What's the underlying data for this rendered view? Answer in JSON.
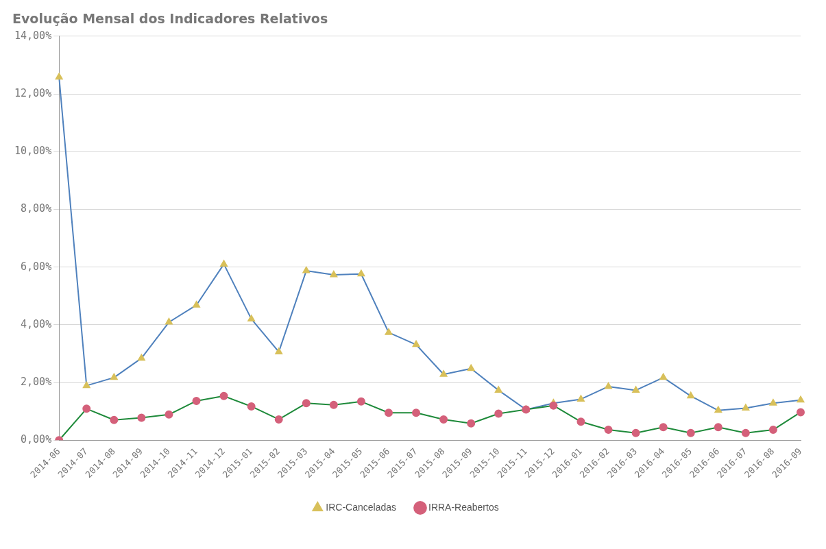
{
  "chart_data": {
    "type": "line",
    "title": "Evolução Mensal dos Indicadores Relativos",
    "categories": [
      "2014-06",
      "2014-07",
      "2014-08",
      "2014-09",
      "2014-10",
      "2014-11",
      "2014-12",
      "2015-01",
      "2015-02",
      "2015-03",
      "2015-04",
      "2015-05",
      "2015-06",
      "2015-07",
      "2015-08",
      "2015-09",
      "2015-10",
      "2015-11",
      "2015-12",
      "2016-01",
      "2016-02",
      "2016-03",
      "2016-04",
      "2016-05",
      "2016-06",
      "2016-07",
      "2016-08",
      "2016-09"
    ],
    "series": [
      {
        "name": "IRC-Canceladas",
        "color": "#4f81bd",
        "marker": "triangle",
        "colors": [
          "#d8c05a",
          "#d8c05a",
          "#d8c05a",
          "#d8c05a",
          "#d8c05a",
          "#d8c05a",
          "#d8c05a",
          "#d8c05a",
          "#d8c05a",
          "#d8c05a",
          "#d8c05a",
          "#d8c05a",
          "#d8c05a",
          "#d8c05a",
          "#d8c05a",
          "#d8c05a",
          "#d8c05a",
          "#d8c05a",
          "#d8c05a",
          "#d8c05a",
          "#d8c05a",
          "#d8c05a",
          "#d8c05a",
          "#d8c05a",
          "#d8c05a",
          "#d8c05a",
          "#d8c05a",
          "#d8c05a"
        ],
        "values": [
          12.58,
          1.89,
          2.17,
          2.84,
          4.09,
          4.68,
          6.1,
          4.2,
          3.06,
          5.87,
          5.73,
          5.76,
          3.73,
          3.31,
          2.28,
          2.48,
          1.73,
          1.06,
          1.28,
          1.42,
          1.86,
          1.73,
          2.17,
          1.53,
          1.03,
          1.11,
          1.28,
          1.39
        ]
      },
      {
        "name": "IRRA-Reabertos",
        "color": "#1e8a3a",
        "marker": "circle",
        "colors": [
          "#d4607a",
          "#d4607a",
          "#d4607a",
          "#d4607a",
          "#d4607a",
          "#d4607a",
          "#d4607a",
          "#d4607a",
          "#d4607a",
          "#d4607a",
          "#d4607a",
          "#d4607a",
          "#d4607a",
          "#d4607a",
          "#d4607a",
          "#d4607a",
          "#d4607a",
          "#d4607a",
          "#d4607a",
          "#d4607a",
          "#d4607a",
          "#d4607a",
          "#d4607a",
          "#d4607a",
          "#d4607a",
          "#d4607a",
          "#d4607a",
          "#d4607a"
        ],
        "values": [
          0,
          1.09,
          0.7,
          0.78,
          0.89,
          1.36,
          1.53,
          1.17,
          0.72,
          1.28,
          1.22,
          1.34,
          0.95,
          0.95,
          0.72,
          0.58,
          0.92,
          1.06,
          1.2,
          0.64,
          0.36,
          0.25,
          0.45,
          0.25,
          0.45,
          0.25,
          0.36,
          0.97
        ]
      }
    ],
    "ylim": [
      0,
      14
    ],
    "yticks": [
      {
        "value": 0,
        "label": "0,00%"
      },
      {
        "value": 2,
        "label": "2,00%"
      },
      {
        "value": 4,
        "label": "4,00%"
      },
      {
        "value": 6,
        "label": "6,00%"
      },
      {
        "value": 8,
        "label": "8,00%"
      },
      {
        "value": 10,
        "label": "10,00%"
      },
      {
        "value": 12,
        "label": "12,00%"
      },
      {
        "value": 14,
        "label": "14,00%"
      }
    ],
    "grid": "y",
    "legend": "bottom",
    "line_style": "solid"
  }
}
